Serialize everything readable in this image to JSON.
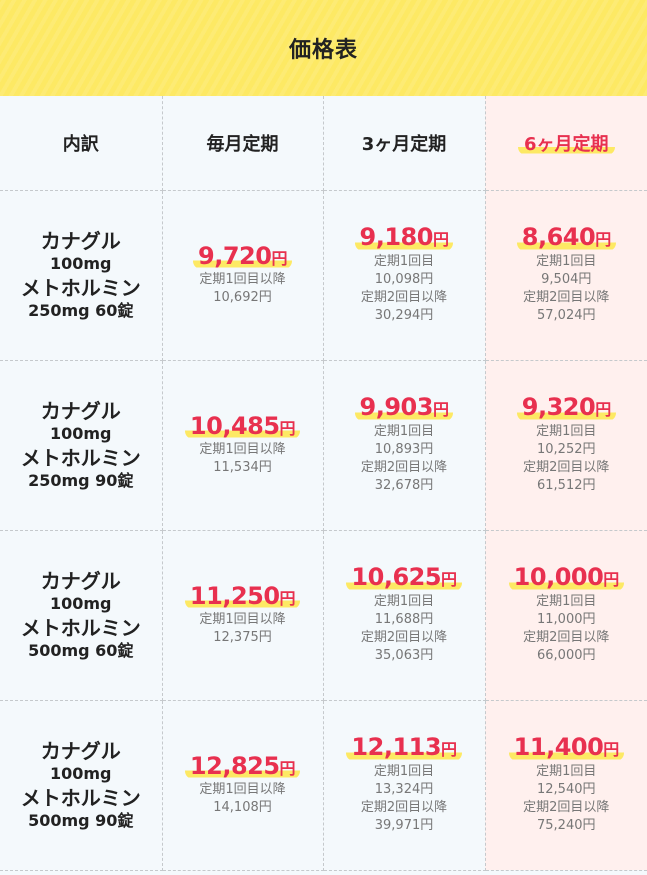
{
  "title": "価格表",
  "headers": [
    "内訳",
    "毎月定期",
    "3ヶ月定期",
    "6ヶ月定期"
  ],
  "highlight_color": "#e8304f",
  "marker_color": "#fde964",
  "rows": [
    {
      "item": {
        "line1": "カナグル",
        "line2": "100mg",
        "line3": "メトホルミン",
        "line4": "250mg 60錠"
      },
      "monthly": {
        "price": "9,720",
        "yen": "円",
        "label1": "定期1回目以降",
        "value1": "10,692円"
      },
      "three_month": {
        "price": "9,180",
        "yen": "円",
        "label1": "定期1回目",
        "value1": "10,098円",
        "label2": "定期2回目以降",
        "value2": "30,294円"
      },
      "six_month": {
        "price": "8,640",
        "yen": "円",
        "label1": "定期1回目",
        "value1": "9,504円",
        "label2": "定期2回目以降",
        "value2": "57,024円"
      }
    },
    {
      "item": {
        "line1": "カナグル",
        "line2": "100mg",
        "line3": "メトホルミン",
        "line4": "250mg 90錠"
      },
      "monthly": {
        "price": "10,485",
        "yen": "円",
        "label1": "定期1回目以降",
        "value1": "11,534円"
      },
      "three_month": {
        "price": "9,903",
        "yen": "円",
        "label1": "定期1回目",
        "value1": "10,893円",
        "label2": "定期2回目以降",
        "value2": "32,678円"
      },
      "six_month": {
        "price": "9,320",
        "yen": "円",
        "label1": "定期1回目",
        "value1": "10,252円",
        "label2": "定期2回目以降",
        "value2": "61,512円"
      }
    },
    {
      "item": {
        "line1": "カナグル",
        "line2": "100mg",
        "line3": "メトホルミン",
        "line4": "500mg 60錠"
      },
      "monthly": {
        "price": "11,250",
        "yen": "円",
        "label1": "定期1回目以降",
        "value1": "12,375円"
      },
      "three_month": {
        "price": "10,625",
        "yen": "円",
        "label1": "定期1回目",
        "value1": "11,688円",
        "label2": "定期2回目以降",
        "value2": "35,063円"
      },
      "six_month": {
        "price": "10,000",
        "yen": "円",
        "label1": "定期1回目",
        "value1": "11,000円",
        "label2": "定期2回目以降",
        "value2": "66,000円"
      }
    },
    {
      "item": {
        "line1": "カナグル",
        "line2": "100mg",
        "line3": "メトホルミン",
        "line4": "500mg 90錠"
      },
      "monthly": {
        "price": "12,825",
        "yen": "円",
        "label1": "定期1回目以降",
        "value1": "14,108円"
      },
      "three_month": {
        "price": "12,113",
        "yen": "円",
        "label1": "定期1回目",
        "value1": "13,324円",
        "label2": "定期2回目以降",
        "value2": "39,971円"
      },
      "six_month": {
        "price": "11,400",
        "yen": "円",
        "label1": "定期1回目",
        "value1": "12,540円",
        "label2": "定期2回目以降",
        "value2": "75,240円"
      }
    }
  ]
}
